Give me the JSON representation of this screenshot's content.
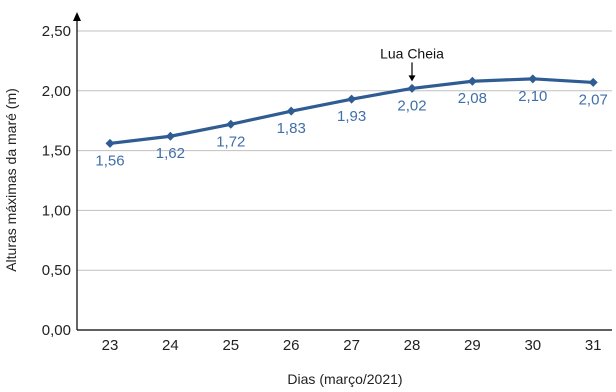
{
  "chart_data": {
    "type": "line",
    "categories": [
      "23",
      "24",
      "25",
      "26",
      "27",
      "28",
      "29",
      "30",
      "31"
    ],
    "values": [
      1.56,
      1.62,
      1.72,
      1.83,
      1.93,
      2.02,
      2.08,
      2.1,
      2.07
    ],
    "data_labels": [
      "1,56",
      "1,62",
      "1,72",
      "1,83",
      "1,93",
      "2,02",
      "2,08",
      "2,10",
      "2,07"
    ],
    "xlabel": "Dias (março/2021)",
    "ylabel": "Alturas  máximas da maré (m)",
    "ylim": [
      0,
      2.5
    ],
    "y_ticks": [
      0,
      0.5,
      1.0,
      1.5,
      2.0,
      2.5
    ],
    "y_tick_labels": [
      "0,00",
      "0,50",
      "1,00",
      "1,50",
      "2,00",
      "2,50"
    ],
    "grid": "horizontal",
    "legend": "none",
    "annotation": {
      "text": "Lua Cheia",
      "category": "28"
    },
    "colors": {
      "line": "#2f5c92",
      "label": "#3f6fa8",
      "grid": "#c0c0c0",
      "axis": "#000000"
    }
  }
}
